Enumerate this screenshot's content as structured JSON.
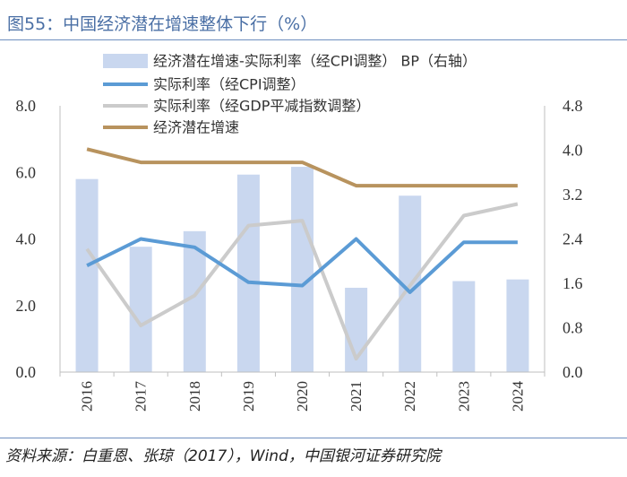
{
  "figure": {
    "title": "图55：中国经济潜在增速整体下行（%）",
    "source": "资料来源：白重恩、张琼（2017），Wind，中国银河证券研究院"
  },
  "chart_data": {
    "type": "bar+line",
    "categories": [
      "2016",
      "2017",
      "2018",
      "2019",
      "2020",
      "2021",
      "2022",
      "2023",
      "2024"
    ],
    "left_axis": {
      "range": [
        0.0,
        8.0
      ],
      "ticks": [
        "0.0",
        "2.0",
        "4.0",
        "6.0",
        "8.0"
      ]
    },
    "right_axis": {
      "range": [
        0.0,
        4.8
      ],
      "ticks": [
        "0.0",
        "0.8",
        "1.6",
        "2.4",
        "3.2",
        "4.0",
        "4.8"
      ]
    },
    "series": [
      {
        "name": "经济潜在增速-实际利率（经CPI调整） BP（右轴）",
        "kind": "bar",
        "axis": "right",
        "color": "#c9d7ef",
        "values": [
          3.48,
          2.26,
          2.54,
          3.56,
          3.7,
          1.52,
          3.18,
          1.64,
          1.67
        ]
      },
      {
        "name": "实际利率（经CPI调整）",
        "kind": "line",
        "axis": "left",
        "color": "#5b9bd5",
        "values": [
          3.2,
          4.0,
          3.75,
          2.7,
          2.6,
          4.0,
          2.4,
          3.9,
          3.9
        ]
      },
      {
        "name": "实际利率（经GDP平减指数调整）",
        "kind": "line",
        "axis": "left",
        "color": "#cbcbcb",
        "values": [
          3.7,
          1.4,
          2.3,
          4.4,
          4.55,
          0.4,
          2.6,
          4.7,
          5.05
        ]
      },
      {
        "name": "经济潜在增速",
        "kind": "line",
        "axis": "left",
        "color": "#b8935e",
        "values": [
          6.7,
          6.3,
          6.3,
          6.3,
          6.3,
          5.6,
          5.6,
          5.6,
          5.6
        ]
      }
    ],
    "legend_position": "top-center",
    "grid": false
  }
}
